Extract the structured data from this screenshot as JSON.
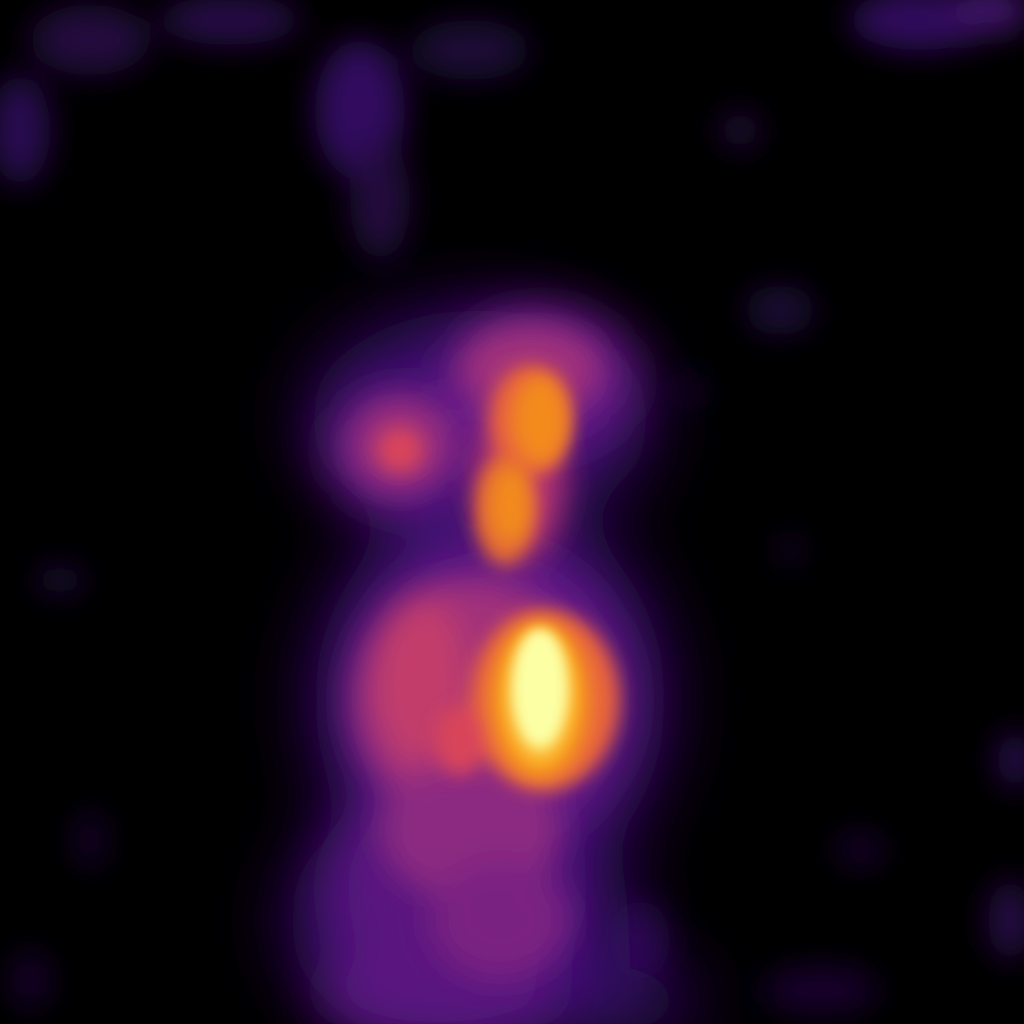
{
  "image": {
    "subject": "radio-astronomy-emission-map",
    "colormap": "inferno",
    "palette": {
      "background": "#000000",
      "faint_purple": "#3b0f70",
      "purple": "#6a1b8a",
      "magenta": "#a2307a",
      "red_orange": "#d8455a",
      "orange": "#f28a1e",
      "amber": "#fbb32f",
      "pale_yellow": "#fcffa4"
    }
  }
}
